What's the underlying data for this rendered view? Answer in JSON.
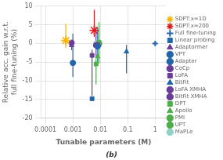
{
  "chart_data": {
    "type": "scatter",
    "xlabel": "Tunable parameters (M)",
    "ylabel": "Relative acc. gain w.r.t.\nfull fine-tuning (%)",
    "annotations": [
      "(b)"
    ],
    "log": "x",
    "xlim": [
      7e-05,
      2.5
    ],
    "xticks": [
      0.0001,
      0.001,
      0.01,
      0.1,
      1
    ],
    "ylim": [
      -20,
      10
    ],
    "yticks": [
      -20,
      -15,
      -10,
      -5,
      0,
      5,
      10
    ],
    "grid": true,
    "legend": "right",
    "series": [
      {
        "name": "Full fine-tuning",
        "color": "#2166ac",
        "marker": "plus",
        "x": [
          1.0
        ],
        "values": [
          0.0
        ],
        "error_low": [
          0
        ],
        "error_high": [
          0
        ]
      },
      {
        "name": "Linear probing",
        "color": "#2166ac",
        "marker": "square",
        "x": [
          0.005
        ],
        "values": [
          -14.8
        ],
        "error_low": [
          0
        ],
        "error_high": [
          0
        ]
      },
      {
        "name": "Adaptormer",
        "color": "#6a3d9a",
        "marker": "triangle",
        "x": [
          0.0009
        ],
        "values": [
          -0.5
        ],
        "error_low": [
          1.3
        ],
        "error_high": [
          1.3
        ]
      },
      {
        "name": "VPT",
        "color": "#2166ac",
        "marker": "circle",
        "x": [
          0.001
        ],
        "values": [
          -5.2
        ],
        "error_low": [
          3.8
        ],
        "error_high": [
          7.8
        ]
      },
      {
        "name": "Adapter",
        "color": "#2166ac",
        "marker": "circle",
        "x": [
          0.008
        ],
        "values": [
          -0.8
        ],
        "error_low": [
          4.5
        ],
        "error_high": [
          5.0
        ]
      },
      {
        "name": "CoCp",
        "color": "#6a3d9a",
        "marker": "circle",
        "x": [
          0.007
        ],
        "values": [
          -0.5
        ],
        "error_low": [
          3.0
        ],
        "error_high": [
          5.0
        ]
      },
      {
        "name": "LoFA",
        "color": "#6a3d9a",
        "marker": "square",
        "x": [
          0.005
        ],
        "values": [
          -3.2
        ],
        "error_low": [
          10.8
        ],
        "error_high": [
          1.5
        ]
      },
      {
        "name": "BitFit",
        "color": "#2166ac",
        "marker": "triangle",
        "x": [
          0.09
        ],
        "values": [
          -2.2
        ],
        "error_low": [
          5.8
        ],
        "error_high": [
          1.8
        ]
      },
      {
        "name": "LoFA XMHA",
        "color": "#6a3d9a",
        "marker": "circle",
        "x": [
          0.008
        ],
        "values": [
          -0.5
        ],
        "error_low": [
          0
        ],
        "error_high": [
          0
        ]
      },
      {
        "name": "BitFit XMHA",
        "color": "#6a3d9a",
        "marker": "circle",
        "x": [
          0.0009
        ],
        "values": [
          0.2
        ],
        "error_low": [
          0
        ],
        "error_high": [
          0
        ]
      },
      {
        "name": "DPT",
        "color": "#4daf4a",
        "marker": "square",
        "x": [
          0.007
        ],
        "values": [
          -5.5
        ],
        "error_low": [
          5.5
        ],
        "error_high": [
          1.5
        ]
      },
      {
        "name": "Apollo",
        "color": "#4daf4a",
        "marker": "triangle",
        "x": [
          0.008
        ],
        "values": [
          -3.5
        ],
        "error_low": [
          0
        ],
        "error_high": [
          0
        ]
      },
      {
        "name": "PMI",
        "color": "#4daf4a",
        "marker": "circle",
        "x": [
          0.009
        ],
        "values": [
          0.2
        ],
        "error_low": [
          5.5
        ],
        "error_high": [
          5.5
        ]
      },
      {
        "name": "UPT",
        "color": "#4daf4a",
        "marker": "circle",
        "x": [
          0.009
        ],
        "values": [
          -0.2
        ],
        "error_low": [
          0
        ],
        "error_high": [
          0
        ]
      },
      {
        "name": "MaPLe",
        "color": "#8dd3c7",
        "marker": "circle",
        "x": [
          0.007
        ],
        "values": [
          -0.1
        ],
        "error_low": [
          0
        ],
        "error_high": [
          0
        ]
      },
      {
        "name": "SDPT:x=1D",
        "color": "#ffb300",
        "marker": "star",
        "x": [
          0.00055
        ],
        "values": [
          0.8
        ],
        "error_low": [
          2.0
        ],
        "error_high": [
          4.5
        ]
      },
      {
        "name": "SDPT:x=200",
        "color": "#e31a1c",
        "marker": "star",
        "x": [
          0.006
        ],
        "values": [
          3.5
        ],
        "error_low": [
          1.8
        ],
        "error_high": [
          5.5
        ]
      }
    ]
  }
}
